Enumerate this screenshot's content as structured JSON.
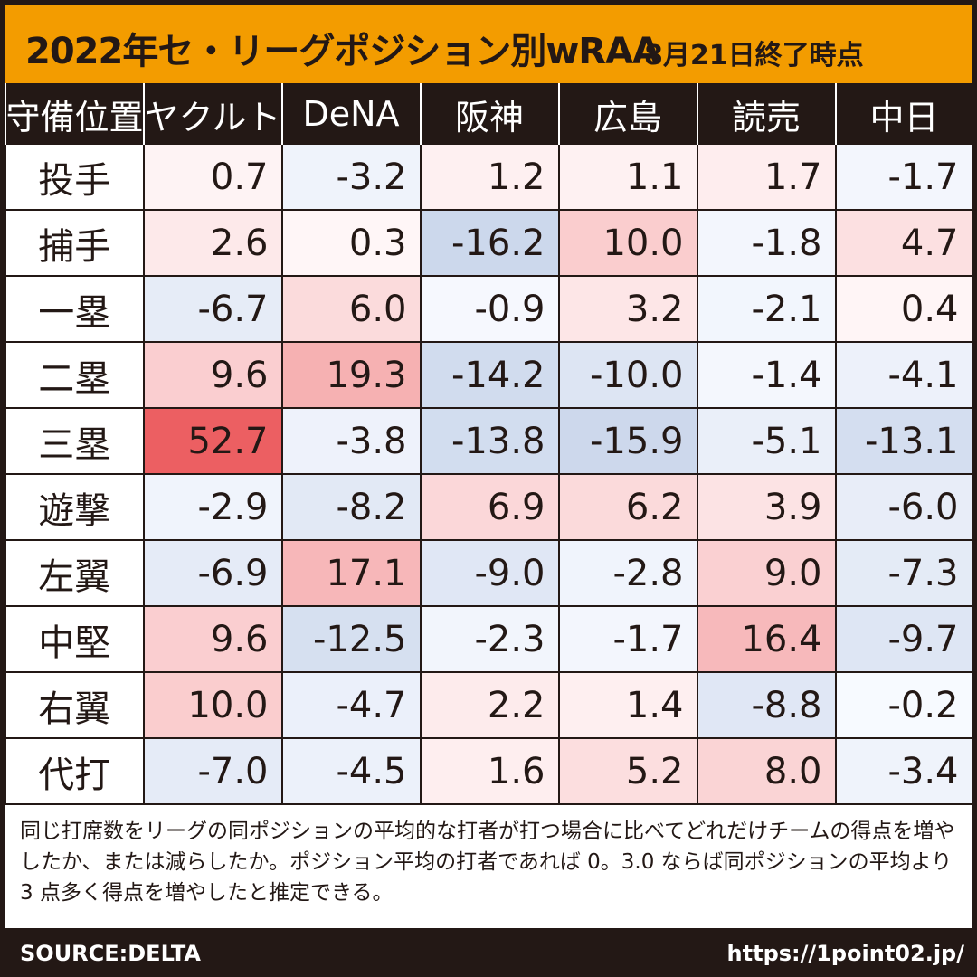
{
  "title": "2022年セ・リーグポジション別wRAA",
  "subtitle": "8月21日終了時点",
  "header": [
    "守備位置",
    "ヤクルト",
    "DeNA",
    "阪神",
    "広島",
    "読売",
    "中日"
  ],
  "note": "同じ打席数をリーグの同ポジションの平均的な打者が打つ場合に比べてどれだけチームの得点を増やしたか、または減らしたか。ポジション平均の打者であれば 0。3.0 ならば同ポジションの平均より 3 点多く得点を増やしたと推定できる。",
  "source": "SOURCE:DELTA",
  "url": "https://1point02.jp/",
  "colors": {
    "accent": "#f39c00",
    "dark": "#231815",
    "positive": "#e8464b",
    "negative": "#5a7fc0"
  },
  "chart_data": {
    "type": "heatmap",
    "title": "2022年セ・リーグポジション別wRAA",
    "subtitle": "8月21日終了時点",
    "row_header": "守備位置",
    "columns": [
      "ヤクルト",
      "DeNA",
      "阪神",
      "広島",
      "読売",
      "中日"
    ],
    "rows": [
      "投手",
      "捕手",
      "一塁",
      "二塁",
      "三塁",
      "遊撃",
      "左翼",
      "中堅",
      "右翼",
      "代打"
    ],
    "values": [
      [
        "0.7",
        "-3.2",
        "1.2",
        "1.1",
        "1.7",
        "-1.7"
      ],
      [
        "2.6",
        "0.3",
        "-16.2",
        "10.0",
        "-1.8",
        "4.7"
      ],
      [
        "-6.7",
        "6.0",
        "-0.9",
        "3.2",
        "-2.1",
        "0.4"
      ],
      [
        "9.6",
        "19.3",
        "-14.2",
        "-10.0",
        "-1.4",
        "-4.1"
      ],
      [
        "52.7",
        "-3.8",
        "-13.8",
        "-15.9",
        "-5.1",
        "-13.1"
      ],
      [
        "-2.9",
        "-8.2",
        "6.9",
        "6.2",
        "3.9",
        "-6.0"
      ],
      [
        "-6.9",
        "17.1",
        "-9.0",
        "-2.8",
        "9.0",
        "-7.3"
      ],
      [
        "9.6",
        "-12.5",
        "-2.3",
        "-1.7",
        "16.4",
        "-9.7"
      ],
      [
        "10.0",
        "-4.7",
        "2.2",
        "1.4",
        "-8.8",
        "-0.2"
      ],
      [
        "-7.0",
        "-4.5",
        "1.6",
        "5.2",
        "8.0",
        "-3.4"
      ]
    ]
  }
}
